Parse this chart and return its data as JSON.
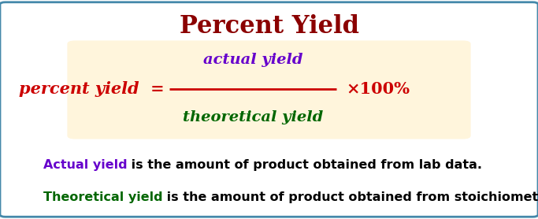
{
  "title": "Percent Yield",
  "title_color": "#8B0000",
  "title_fontsize": 22,
  "box_facecolor": "#FFF5DC",
  "formula_left": "percent yield  =",
  "formula_left_color": "#CC0000",
  "numerator": "actual yield",
  "numerator_color": "#6600CC",
  "denominator": "theoretical yield",
  "denominator_color": "#006600",
  "fraction_line_color": "#CC0000",
  "times100": "×100%",
  "times100_color": "#CC0000",
  "desc1_colored": "Actual yield",
  "desc1_colored_color": "#6600CC",
  "desc1_rest": " is the amount of product obtained from lab data.",
  "desc2_colored": "Theoretical yield",
  "desc2_colored_color": "#006600",
  "desc2_rest": " is the amount of product obtained from stoichiometry.",
  "desc_color": "#000000",
  "border_color": "#4488AA",
  "bg_color": "#FFFFFF",
  "fig_width": 6.83,
  "fig_height": 2.78,
  "dpi": 100
}
